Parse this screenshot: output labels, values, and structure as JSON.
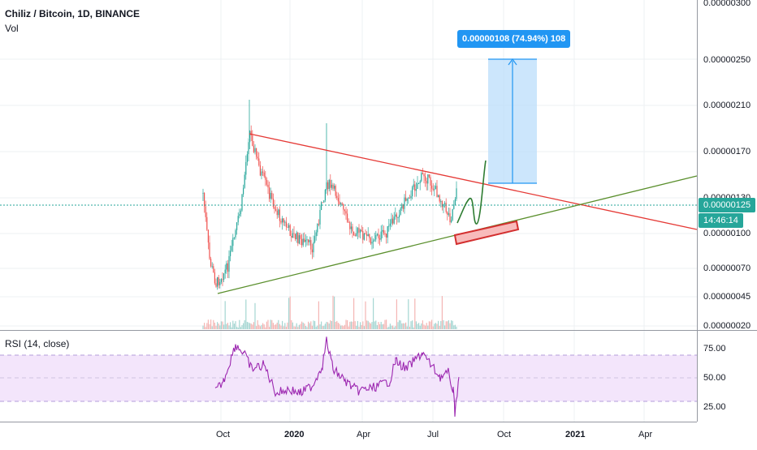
{
  "legend": {
    "title": "Chiliz / Bitcoin, 1D, BINANCE",
    "volume": "Vol"
  },
  "rsi": {
    "label": "RSI (14, close)",
    "levels": [
      "75.00",
      "50.00",
      "25.00"
    ]
  },
  "price_axis": {
    "labels": [
      "0.00000300",
      "0.00000250",
      "0.00000210",
      "0.00000170",
      "0.00000130",
      "0.00000100",
      "0.00000070",
      "0.00000045",
      "0.00000020"
    ]
  },
  "time_axis": {
    "labels": [
      "Oct",
      "2020",
      "Apr",
      "Jul",
      "Oct",
      "2021",
      "Apr"
    ]
  },
  "current_price": "0.00000125",
  "countdown": "14:46:14",
  "measure": {
    "label": "0.00000108 (74.94%) 108"
  },
  "colors": {
    "up": "#26a69a",
    "down": "#ef5350",
    "resistance": "#e53935",
    "support": "#5a8f2c",
    "rsi_line": "#9c27b0",
    "rsi_band": "#f3e5fb",
    "measure": "#2196f3",
    "price_badge": "#26a69a"
  },
  "chart_data": {
    "type": "candlestick",
    "symbol": "Chiliz / Bitcoin",
    "interval": "1D",
    "exchange": "BINANCE",
    "price_range": [
      2e-07,
      3e-07
    ],
    "approx_close_path": [
      [
        "2019-09",
        9.5e-07
      ],
      [
        "2019-10",
        7e-07
      ],
      [
        "2019-11",
        1.65e-06
      ],
      [
        "2019-12",
        1.35e-06
      ],
      [
        "2020-01",
        8.5e-07
      ],
      [
        "2020-02",
        1.6e-06
      ],
      [
        "2020-03",
        1.1e-06
      ],
      [
        "2020-04",
        9.5e-07
      ],
      [
        "2020-05",
        1.05e-06
      ],
      [
        "2020-06",
        1.4e-06
      ],
      [
        "2020-07",
        1.25e-06
      ]
    ]
  }
}
